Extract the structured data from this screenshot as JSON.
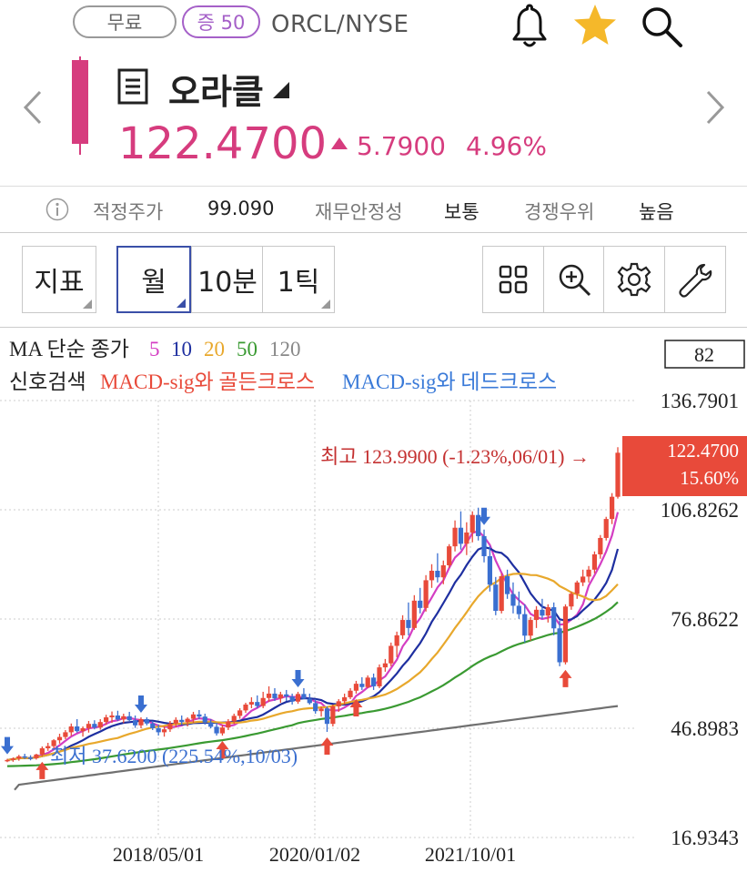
{
  "header": {
    "badge_free": "무료",
    "badge_margin": "증 50",
    "ticker": "ORCL/NYSE",
    "title": "오라클",
    "price": "122.4700",
    "change_abs": "5.7900",
    "change_pct": "4.96%",
    "accent_color": "#d63c7e"
  },
  "info": {
    "fair_price_label": "적정주가",
    "fair_price_value": "99.090",
    "stability_label": "재무안정성",
    "stability_value": "보통",
    "competitive_label": "경쟁우위",
    "competitive_value": "높음"
  },
  "toolbar": {
    "indicator_label": "지표",
    "period_month": "월",
    "period_10min": "10분",
    "period_1tick": "1틱"
  },
  "chart_legend": {
    "ma_title": "MA 단순 종가",
    "ma_periods": [
      "5",
      "10",
      "20",
      "50",
      "120"
    ],
    "signal_label": "신호검색",
    "golden_cross": "MACD-sig와 골든크로스",
    "dead_cross": "MACD-sig와 데드크로스",
    "count_box": "82"
  },
  "chart_annotations": {
    "high_label": "최고 123.9900 (-1.23%,06/01) →",
    "low_label": "최저 37.6200 (225.54%,10/03)",
    "current_price": "122.4700",
    "current_pct": "15.60%"
  },
  "chart_data": {
    "type": "candlestick",
    "y_ticks": [
      "136.7901",
      "106.8262",
      "76.8622",
      "46.8983",
      "16.9343"
    ],
    "ylim": [
      16.9343,
      136.7901
    ],
    "x_ticks": [
      "2018/05/01",
      "2020/01/02",
      "2021/10/01"
    ],
    "ma_colors": {
      "5": "#d43ec3",
      "10": "#1e2fa0",
      "20": "#e8a82c",
      "50": "#3a9a32",
      "120": "#707070"
    },
    "up_color": "#e84a3a",
    "down_color": "#3a6fd0",
    "ohlc": [
      [
        37.9,
        38.5,
        37.6,
        38.2
      ],
      [
        38.2,
        38.9,
        37.7,
        38.6
      ],
      [
        38.6,
        39.6,
        38.0,
        39.2
      ],
      [
        39.2,
        39.9,
        38.5,
        38.9
      ],
      [
        38.9,
        39.5,
        38.1,
        38.7
      ],
      [
        38.7,
        39.9,
        38.3,
        39.7
      ],
      [
        39.7,
        41.9,
        39.2,
        41.4
      ],
      [
        41.4,
        42.9,
        40.7,
        42.0
      ],
      [
        42.0,
        43.9,
        41.4,
        43.6
      ],
      [
        43.6,
        45.4,
        42.7,
        44.5
      ],
      [
        44.5,
        46.4,
        43.9,
        45.8
      ],
      [
        45.8,
        48.2,
        44.8,
        47.4
      ],
      [
        47.4,
        49.4,
        45.7,
        46.1
      ],
      [
        46.1,
        47.4,
        44.6,
        46.9
      ],
      [
        46.9,
        48.9,
        45.7,
        48.1
      ],
      [
        48.1,
        49.1,
        46.6,
        47.1
      ],
      [
        47.1,
        49.4,
        46.5,
        48.6
      ],
      [
        48.6,
        50.6,
        47.8,
        49.9
      ],
      [
        49.9,
        51.5,
        48.4,
        50.4
      ],
      [
        50.4,
        51.7,
        48.9,
        49.3
      ],
      [
        49.3,
        50.9,
        48.3,
        50.2
      ],
      [
        50.2,
        51.4,
        48.9,
        49.1
      ],
      [
        49.1,
        50.4,
        47.0,
        47.7
      ],
      [
        47.7,
        49.9,
        46.9,
        49.4
      ],
      [
        49.4,
        49.9,
        47.7,
        48.2
      ],
      [
        48.2,
        48.9,
        46.4,
        46.9
      ],
      [
        46.9,
        47.9,
        44.9,
        45.8
      ],
      [
        45.8,
        47.4,
        44.6,
        46.6
      ],
      [
        46.6,
        48.9,
        45.9,
        48.2
      ],
      [
        48.2,
        49.9,
        47.1,
        49.2
      ],
      [
        49.2,
        50.4,
        47.9,
        48.6
      ],
      [
        48.6,
        49.9,
        47.4,
        49.5
      ],
      [
        49.5,
        51.4,
        48.4,
        50.7
      ],
      [
        50.7,
        51.9,
        49.4,
        50.1
      ],
      [
        50.1,
        50.9,
        47.9,
        48.5
      ],
      [
        48.5,
        49.4,
        46.9,
        47.3
      ],
      [
        47.3,
        48.4,
        44.9,
        45.5
      ],
      [
        45.5,
        47.9,
        44.9,
        47.1
      ],
      [
        47.1,
        49.4,
        46.4,
        48.8
      ],
      [
        48.8,
        50.9,
        48.1,
        50.3
      ],
      [
        50.3,
        52.4,
        49.5,
        51.8
      ],
      [
        51.8,
        53.9,
        51.1,
        53.4
      ],
      [
        53.4,
        55.4,
        52.4,
        54.1
      ],
      [
        54.1,
        55.9,
        52.4,
        53.0
      ],
      [
        53.0,
        56.9,
        52.4,
        55.2
      ],
      [
        55.2,
        58.4,
        54.1,
        56.4
      ],
      [
        56.4,
        57.9,
        54.4,
        55.1
      ],
      [
        55.1,
        56.9,
        53.9,
        56.2
      ],
      [
        56.2,
        57.4,
        54.4,
        55.6
      ],
      [
        55.6,
        56.4,
        53.4,
        54.2
      ],
      [
        54.2,
        56.9,
        53.6,
        56.3
      ],
      [
        56.3,
        57.9,
        54.9,
        55.0
      ],
      [
        55.0,
        56.4,
        53.4,
        53.8
      ],
      [
        53.8,
        54.9,
        50.9,
        51.6
      ],
      [
        51.6,
        52.9,
        50.1,
        52.3
      ],
      [
        52.3,
        52.9,
        45.9,
        48.1
      ],
      [
        48.1,
        53.4,
        47.4,
        52.9
      ],
      [
        52.9,
        54.9,
        51.4,
        54.3
      ],
      [
        54.3,
        56.4,
        53.4,
        55.4
      ],
      [
        55.4,
        57.9,
        54.9,
        57.2
      ],
      [
        57.2,
        59.9,
        56.4,
        59.1
      ],
      [
        59.1,
        60.9,
        57.4,
        58.2
      ],
      [
        58.2,
        61.4,
        57.9,
        60.8
      ],
      [
        60.8,
        61.9,
        57.4,
        58.4
      ],
      [
        58.4,
        64.4,
        57.9,
        63.6
      ],
      [
        63.6,
        65.9,
        62.4,
        64.7
      ],
      [
        64.7,
        70.4,
        63.9,
        69.5
      ],
      [
        69.5,
        73.4,
        66.4,
        72.4
      ],
      [
        72.4,
        77.9,
        71.4,
        76.6
      ],
      [
        76.6,
        81.4,
        72.4,
        74.4
      ],
      [
        74.4,
        83.4,
        73.9,
        81.9
      ],
      [
        81.9,
        85.4,
        78.4,
        79.9
      ],
      [
        79.9,
        88.9,
        78.9,
        87.5
      ],
      [
        87.5,
        91.9,
        85.4,
        90.1
      ],
      [
        90.1,
        94.9,
        86.9,
        88.3
      ],
      [
        88.3,
        92.9,
        86.4,
        91.6
      ],
      [
        91.6,
        97.4,
        90.9,
        96.8
      ],
      [
        96.8,
        103.9,
        95.4,
        101.9
      ],
      [
        101.9,
        106.4,
        95.9,
        97.5
      ],
      [
        97.5,
        103.4,
        94.4,
        100.6
      ],
      [
        100.6,
        106.4,
        97.9,
        105.4
      ],
      [
        105.4,
        107.4,
        98.4,
        99.6
      ],
      [
        99.6,
        101.4,
        92.4,
        94.1
      ],
      [
        94.1,
        96.9,
        84.4,
        86.3
      ],
      [
        86.3,
        88.4,
        77.9,
        79.1
      ],
      [
        79.1,
        89.4,
        78.4,
        88.6
      ],
      [
        88.6,
        90.4,
        82.4,
        83.7
      ],
      [
        83.7,
        86.9,
        78.4,
        80.5
      ],
      [
        80.5,
        84.4,
        76.9,
        78.2
      ],
      [
        78.2,
        80.9,
        70.4,
        72.3
      ],
      [
        72.3,
        77.4,
        70.9,
        76.6
      ],
      [
        76.6,
        80.4,
        74.4,
        79.4
      ],
      [
        79.4,
        82.4,
        76.9,
        77.8
      ],
      [
        77.8,
        80.9,
        75.9,
        80.1
      ],
      [
        80.1,
        81.4,
        72.4,
        74.3
      ],
      [
        74.3,
        76.4,
        63.9,
        65.0
      ],
      [
        65.0,
        80.9,
        64.4,
        80.3
      ],
      [
        80.3,
        84.4,
        79.4,
        83.8
      ],
      [
        83.8,
        87.4,
        82.4,
        86.9
      ],
      [
        86.9,
        90.4,
        85.9,
        88.5
      ],
      [
        88.5,
        91.4,
        86.9,
        90.4
      ],
      [
        90.4,
        95.4,
        89.4,
        94.6
      ],
      [
        94.6,
        99.9,
        93.4,
        99.1
      ],
      [
        99.1,
        104.9,
        98.4,
        104.3
      ],
      [
        104.3,
        111.4,
        102.9,
        110.4
      ],
      [
        110.4,
        123.99,
        109.9,
        122.47
      ]
    ]
  }
}
